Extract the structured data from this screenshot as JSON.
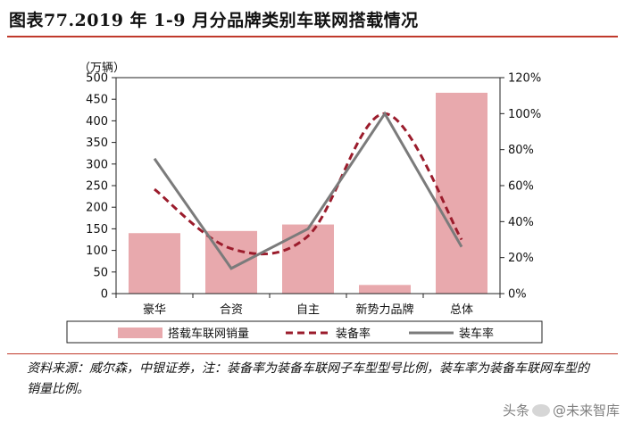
{
  "title": "图表77.2019 年 1-9 月分品牌类别车联网搭载情况",
  "source_text": "资料来源：威尔森，中银证券，注：装备率为装备车联网子车型型号比例，装车率为装备车联网车型的销量比例。",
  "watermark": {
    "prefix": "头条",
    "handle": "@未来智库"
  },
  "colors": {
    "bar": "#e8a9ad",
    "equip_line": "#9b1c2c",
    "install_line": "#7b7b7b",
    "accent": "#c0392b"
  },
  "chart_data": {
    "type": "bar",
    "categories": [
      "豪华",
      "合资",
      "自主",
      "新势力品牌",
      "总体"
    ],
    "unit_label": "（万辆）",
    "y_left": {
      "min": 0,
      "max": 500,
      "step": 50,
      "ticks": [
        "0",
        "50",
        "100",
        "150",
        "200",
        "250",
        "300",
        "350",
        "400",
        "450",
        "500"
      ]
    },
    "y_right": {
      "min": 0,
      "max": 1.2,
      "step": 0.2,
      "ticks": [
        "0%",
        "20%",
        "40%",
        "60%",
        "80%",
        "100%",
        "120%"
      ]
    },
    "series": [
      {
        "name": "搭载车联网销量",
        "kind": "bar",
        "axis": "left",
        "values": [
          140,
          145,
          160,
          20,
          465
        ]
      },
      {
        "name": "装备率",
        "kind": "dashed-smooth",
        "axis": "right",
        "values": [
          0.58,
          0.25,
          0.32,
          1.0,
          0.3
        ]
      },
      {
        "name": "装车率",
        "kind": "solid",
        "axis": "right",
        "values": [
          0.75,
          0.14,
          0.36,
          1.0,
          0.26
        ]
      }
    ],
    "legend_position": "bottom"
  }
}
